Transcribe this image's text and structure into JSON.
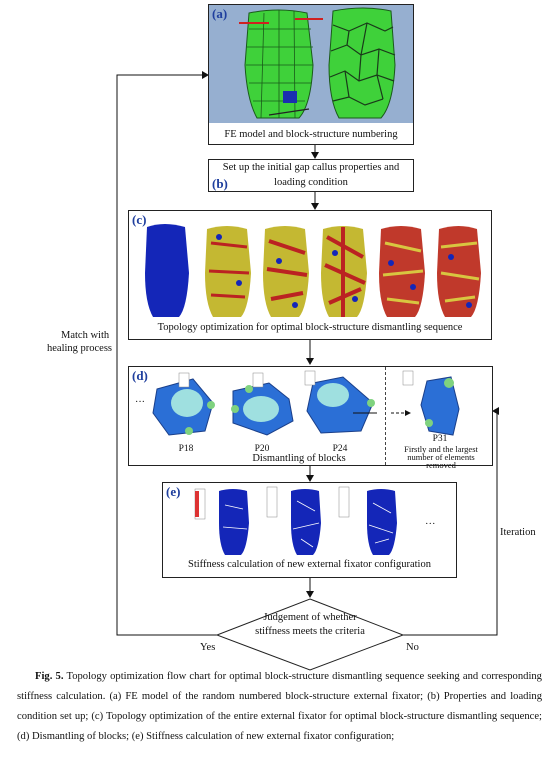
{
  "panels": {
    "a": {
      "tag": "(a)",
      "caption": "FE model and block-structure numbering"
    },
    "b": {
      "tag": "(b)",
      "line1": "Set up the initial gap callus properties and",
      "line2": "loading condition"
    },
    "c": {
      "tag": "(c)",
      "caption": "Topology optimization for optimal block-structure dismantling sequence"
    },
    "d": {
      "tag": "(d)",
      "caption": "Dismantling of blocks",
      "dots": "···",
      "p18": "P18",
      "p20": "P20",
      "p24": "P24",
      "p31": "P31",
      "note1": "Firstly and the largest",
      "note2": "number of elements",
      "note3": "removed"
    },
    "e": {
      "tag": "(e)",
      "caption": "Stiffness calculation of new external fixator configuration",
      "dots": "···"
    }
  },
  "decision": {
    "line1": "Judgement of whether",
    "line2": "stiffness meets the criteria"
  },
  "flow": {
    "yes": "Yes",
    "no": "No",
    "iteration": "Iteration",
    "match1": "Match with",
    "match2": "healing process"
  },
  "figure_caption": {
    "label": "Fig. 5.",
    "text": " Topology optimization flow chart for optimal block-structure dismantling sequence seeking and corresponding stiffness calculation. (a) FE model of the random numbered block-structure external fixator; (b) Properties and loading condition set up; (c) Topology optimization of the entire external fixator for optimal block-structure dismantling sequence; (d) Dismantling of blocks; (e) Stiffness calculation of new external fixator configuration;"
  },
  "colors": {
    "tag_blue": "#1f3f9e",
    "fe_green": "#3fd13a",
    "fe_bg": "#8aa6c9",
    "mesh_blue": "#1426b8"
  }
}
